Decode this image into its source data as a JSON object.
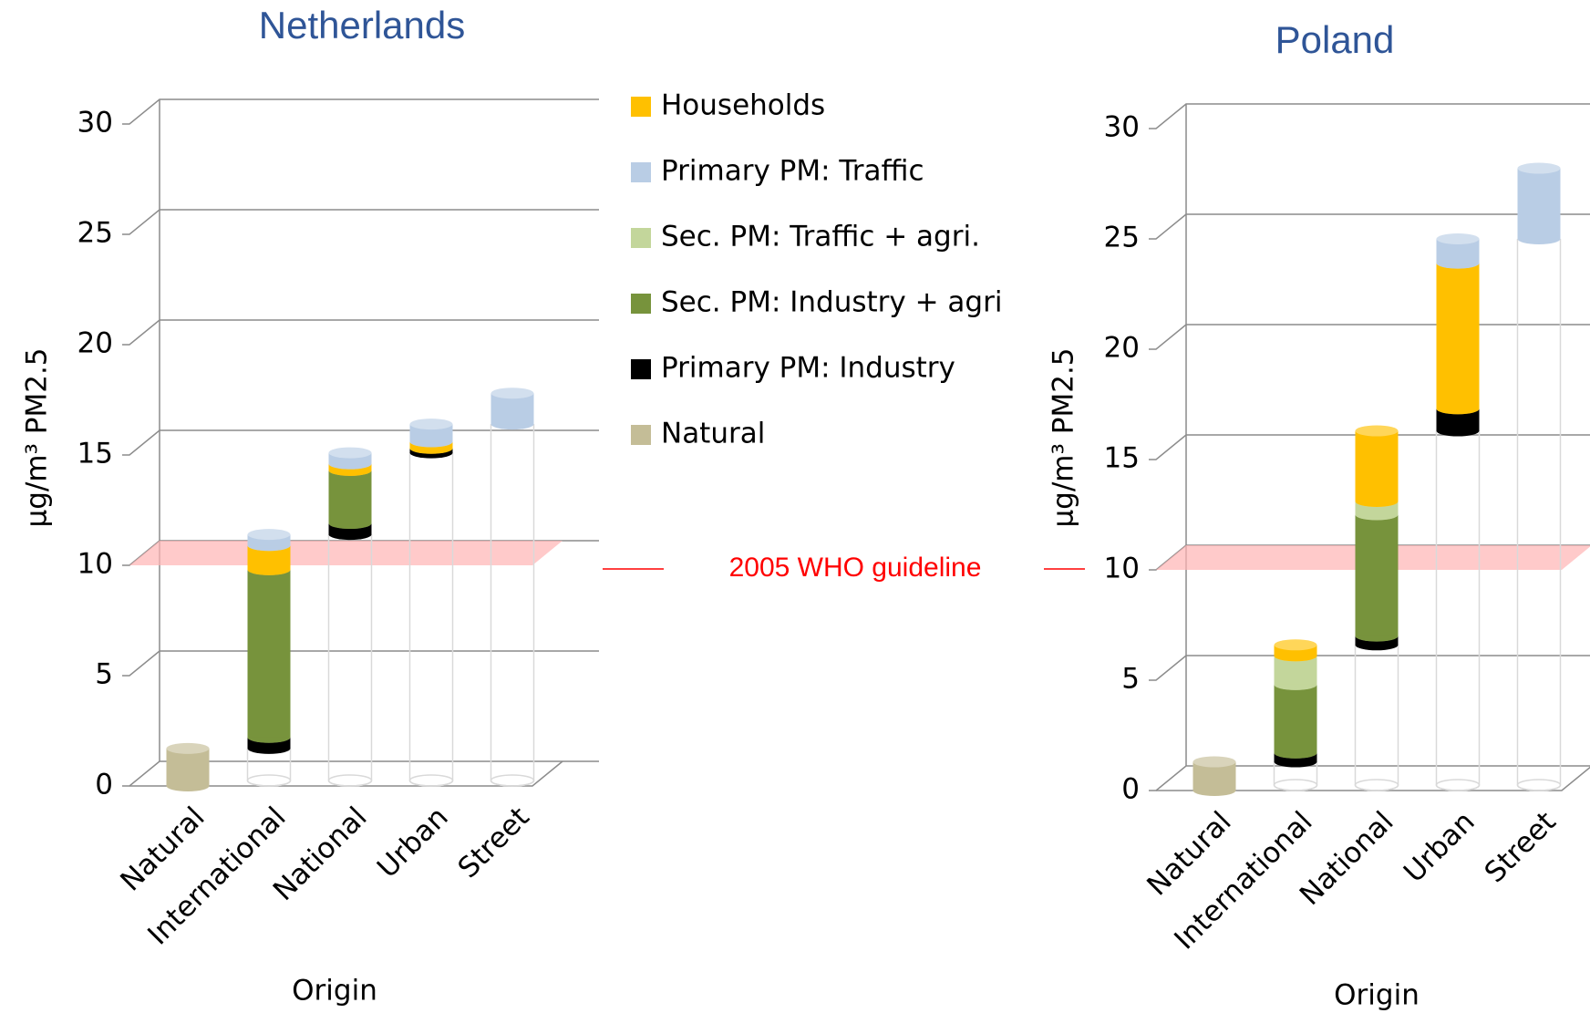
{
  "chart_data": [
    {
      "type": "bar",
      "title": "Netherlands",
      "xlabel": "Origin",
      "ylabel": "µg/m³ PM2.5",
      "categories": [
        "Natural",
        "International",
        "National",
        "Urban",
        "Street"
      ],
      "ylim": [
        0,
        30
      ],
      "yticks": [
        0,
        5,
        10,
        15,
        20,
        25,
        30
      ],
      "grid": true,
      "reference_line": {
        "label": "2005 WHO guideline",
        "value": 10
      },
      "series": [
        {
          "name": "Households",
          "color": "#ffc000",
          "values": [
            null,
            1.1,
            0.3,
            0.3,
            null
          ]
        },
        {
          "name": "Primary PM: Traffic",
          "color": "#b9cde5",
          "values": [
            null,
            0.5,
            0.5,
            0.8,
            1.4
          ]
        },
        {
          "name": "Sec. PM: Traffic + agri.",
          "color": "#c3d69b",
          "values": [
            null,
            null,
            null,
            null,
            null
          ]
        },
        {
          "name": "Sec. PM: Industry + agri",
          "color": "#77933c",
          "values": [
            null,
            7.6,
            2.4,
            null,
            null
          ]
        },
        {
          "name": "Primary PM: Industry",
          "color": "#000000",
          "values": [
            null,
            0.5,
            0.5,
            0.2,
            null
          ]
        },
        {
          "name": "Natural",
          "color": "#c4bd97",
          "values": [
            1.7,
            null,
            null,
            null,
            null
          ]
        }
      ]
    },
    {
      "type": "bar",
      "title": "Poland",
      "xlabel": "Origin",
      "ylabel": "µg/m³ PM2.5",
      "categories": [
        "Natural",
        "International",
        "National",
        "Urban",
        "Street"
      ],
      "ylim": [
        0,
        30
      ],
      "yticks": [
        0,
        5,
        10,
        15,
        20,
        25,
        30
      ],
      "grid": true,
      "series": [
        {
          "color": "#ffc000",
          "values": [
            null,
            0.5,
            3.2,
            6.6,
            null
          ]
        },
        {
          "color": "#b9cde5",
          "values": [
            null,
            null,
            null,
            1.1,
            3.2
          ]
        },
        {
          "color": "#c3d69b",
          "values": [
            null,
            1.3,
            0.6,
            null,
            null
          ]
        },
        {
          "color": "#77933c",
          "values": [
            null,
            3.1,
            5.5,
            null,
            null
          ]
        },
        {
          "color": "#000000",
          "values": [
            null,
            0.4,
            0.4,
            1.0,
            null
          ]
        },
        {
          "color": "#c4bd97",
          "values": [
            1.3,
            null,
            null,
            null,
            null
          ]
        }
      ]
    }
  ]
}
